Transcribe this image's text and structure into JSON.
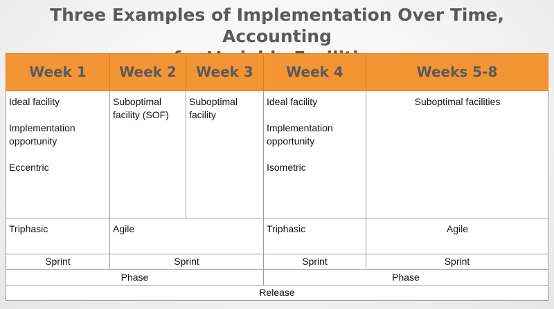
{
  "title": {
    "line1": "Three Examples of Implementation Over Time, Accounting",
    "line2": "for Variable Facilities"
  },
  "table": {
    "headers": [
      "Week 1",
      "Week 2",
      "Week 3",
      "Week 4",
      "Weeks 5-8"
    ],
    "row1": {
      "week1": [
        "Ideal facility",
        "Implementation",
        "opportunity",
        "Eccentric"
      ],
      "week2": [
        "Suboptimal",
        "facility (SOF)"
      ],
      "week3": [
        "Suboptimal",
        "facility"
      ],
      "week4": [
        "Ideal facility",
        "Implementation",
        "opportunity",
        "Isometric"
      ],
      "weeks5_8": "Suboptimal facilities"
    },
    "row2": {
      "week1": "Triphasic",
      "week2_3": "Agile",
      "week4": "Triphasic",
      "weeks5_8": "Agile"
    },
    "sprints": [
      "Sprint",
      "Sprint",
      "Sprint",
      "Sprint"
    ],
    "phases": [
      "Phase",
      "Phase"
    ],
    "release": "Release"
  }
}
